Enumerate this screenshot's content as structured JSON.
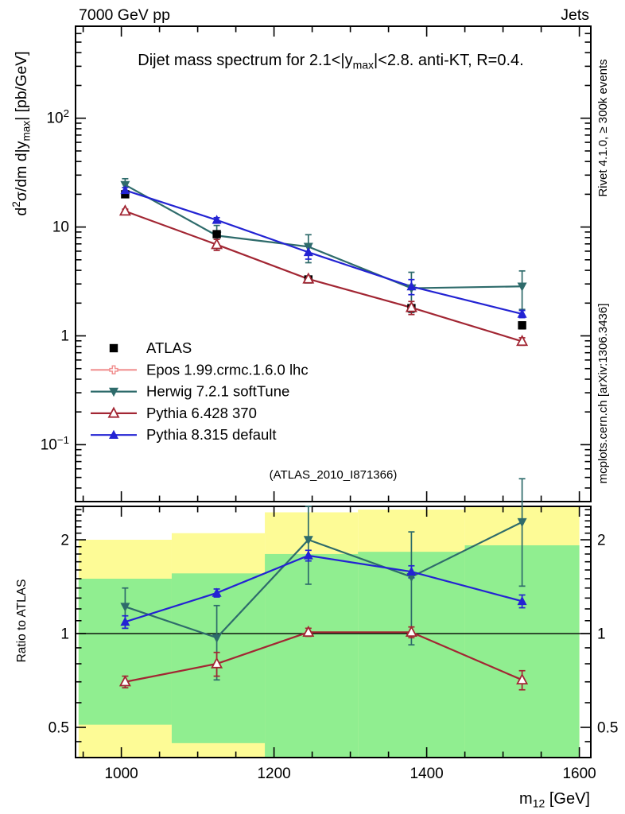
{
  "header": {
    "left": "7000 GeV pp",
    "right": "Jets"
  },
  "side_notes": {
    "top": "Rivet 4.1.0, ≥ 300k events",
    "bottom": "mcplots.cern.ch [arXiv:1306.3436]"
  },
  "watermark": "(ATLAS_2010_I871366)",
  "chart_data": {
    "type": "line",
    "title_segments": [
      {
        "t": "Dijet mass spectrum for 2.1<|y"
      },
      {
        "t": "max",
        "sub": true
      },
      {
        "t": "|<2.8.  anti-KT, R=0.4."
      }
    ],
    "xlabel_segments": [
      {
        "t": "m"
      },
      {
        "t": "12",
        "sub": true
      },
      {
        "t": " [GeV]"
      }
    ],
    "ylabel_main_segments": [
      {
        "t": "d"
      },
      {
        "t": "2",
        "sup": true
      },
      {
        "t": "σ/dm d|y"
      },
      {
        "t": "max",
        "sub": true
      },
      {
        "t": "| [pb/GeV]"
      }
    ],
    "ylabel_ratio": "Ratio to ATLAS",
    "xlim": [
      940,
      1615
    ],
    "ylim_main": [
      0.03,
      700
    ],
    "ylim_ratio": [
      0.4,
      2.56
    ],
    "x_major_ticks": [
      1000,
      1200,
      1400,
      1600
    ],
    "x_minor_step": 50,
    "y_major_ticks_main": [
      0.1,
      1,
      10,
      100
    ],
    "ratio_major_ticks": [
      0.5,
      1,
      2
    ],
    "x": [
      1005,
      1125,
      1245,
      1380,
      1525
    ],
    "bin_edges": [
      944,
      1066,
      1188,
      1310,
      1450,
      1600
    ],
    "series": [
      {
        "name": "ATLAS",
        "marker": "square",
        "color": "#000000",
        "legend_line": false,
        "values": [
          20,
          8.6,
          3.3,
          1.8,
          1.25
        ],
        "err": [
          0.8,
          0.4,
          0.18,
          0.1,
          0.09
        ],
        "ratio": null,
        "ratio_err": null
      },
      {
        "name": "Epos 1.99.crmc.1.6.0 lhc",
        "marker": "plus-open",
        "color": "#f19090",
        "legend_line": true,
        "values": [],
        "err": [],
        "ratio": [],
        "ratio_err": []
      },
      {
        "name": "Herwig 7.2.1 softTune",
        "marker": "triangle-down",
        "color": "#2e6b6b",
        "legend_line": true,
        "values": [
          24.4,
          8.34,
          6.6,
          2.74,
          2.85
        ],
        "err": [
          3.4,
          2.0,
          1.9,
          1.1,
          1.1
        ],
        "ratio": [
          1.22,
          0.97,
          2.0,
          1.52,
          2.28
        ],
        "ratio_err": [
          0.18,
          0.26,
          0.56,
          0.6,
          0.86
        ]
      },
      {
        "name": "Pythia 6.428 370",
        "marker": "triangle-up-open",
        "color": "#a22633",
        "legend_line": true,
        "values": [
          14.0,
          6.9,
          3.33,
          1.82,
          0.89
        ],
        "err": [
          0.6,
          0.8,
          0.2,
          0.25,
          0.07
        ],
        "ratio": [
          0.7,
          0.8,
          1.01,
          1.01,
          0.71
        ],
        "ratio_err": [
          0.03,
          0.07,
          0.03,
          0.04,
          0.05
        ]
      },
      {
        "name": "Pythia 8.315 default",
        "marker": "triangle-up",
        "color": "#2323d3",
        "legend_line": true,
        "values": [
          21.8,
          11.6,
          5.87,
          2.84,
          1.59
        ],
        "err": [
          1.3,
          0.6,
          0.8,
          0.45,
          0.12
        ],
        "ratio": [
          1.09,
          1.35,
          1.78,
          1.58,
          1.27
        ],
        "ratio_err": [
          0.05,
          0.04,
          0.07,
          0.07,
          0.06
        ]
      }
    ],
    "bands": {
      "yellow_color": "#fdfb96",
      "green_color": "#90ee90",
      "yellow_range": [
        [
          0.38,
          2.0
        ],
        [
          0.38,
          2.1
        ],
        [
          0.38,
          2.45
        ],
        [
          0.38,
          2.5
        ],
        [
          0.38,
          2.7
        ]
      ],
      "green_range": [
        [
          0.51,
          1.5
        ],
        [
          0.445,
          1.56
        ],
        [
          0.38,
          1.8
        ],
        [
          0.38,
          1.83
        ],
        [
          0.38,
          1.92
        ]
      ]
    },
    "legend_position": "inside-left-middle",
    "grid": false
  }
}
